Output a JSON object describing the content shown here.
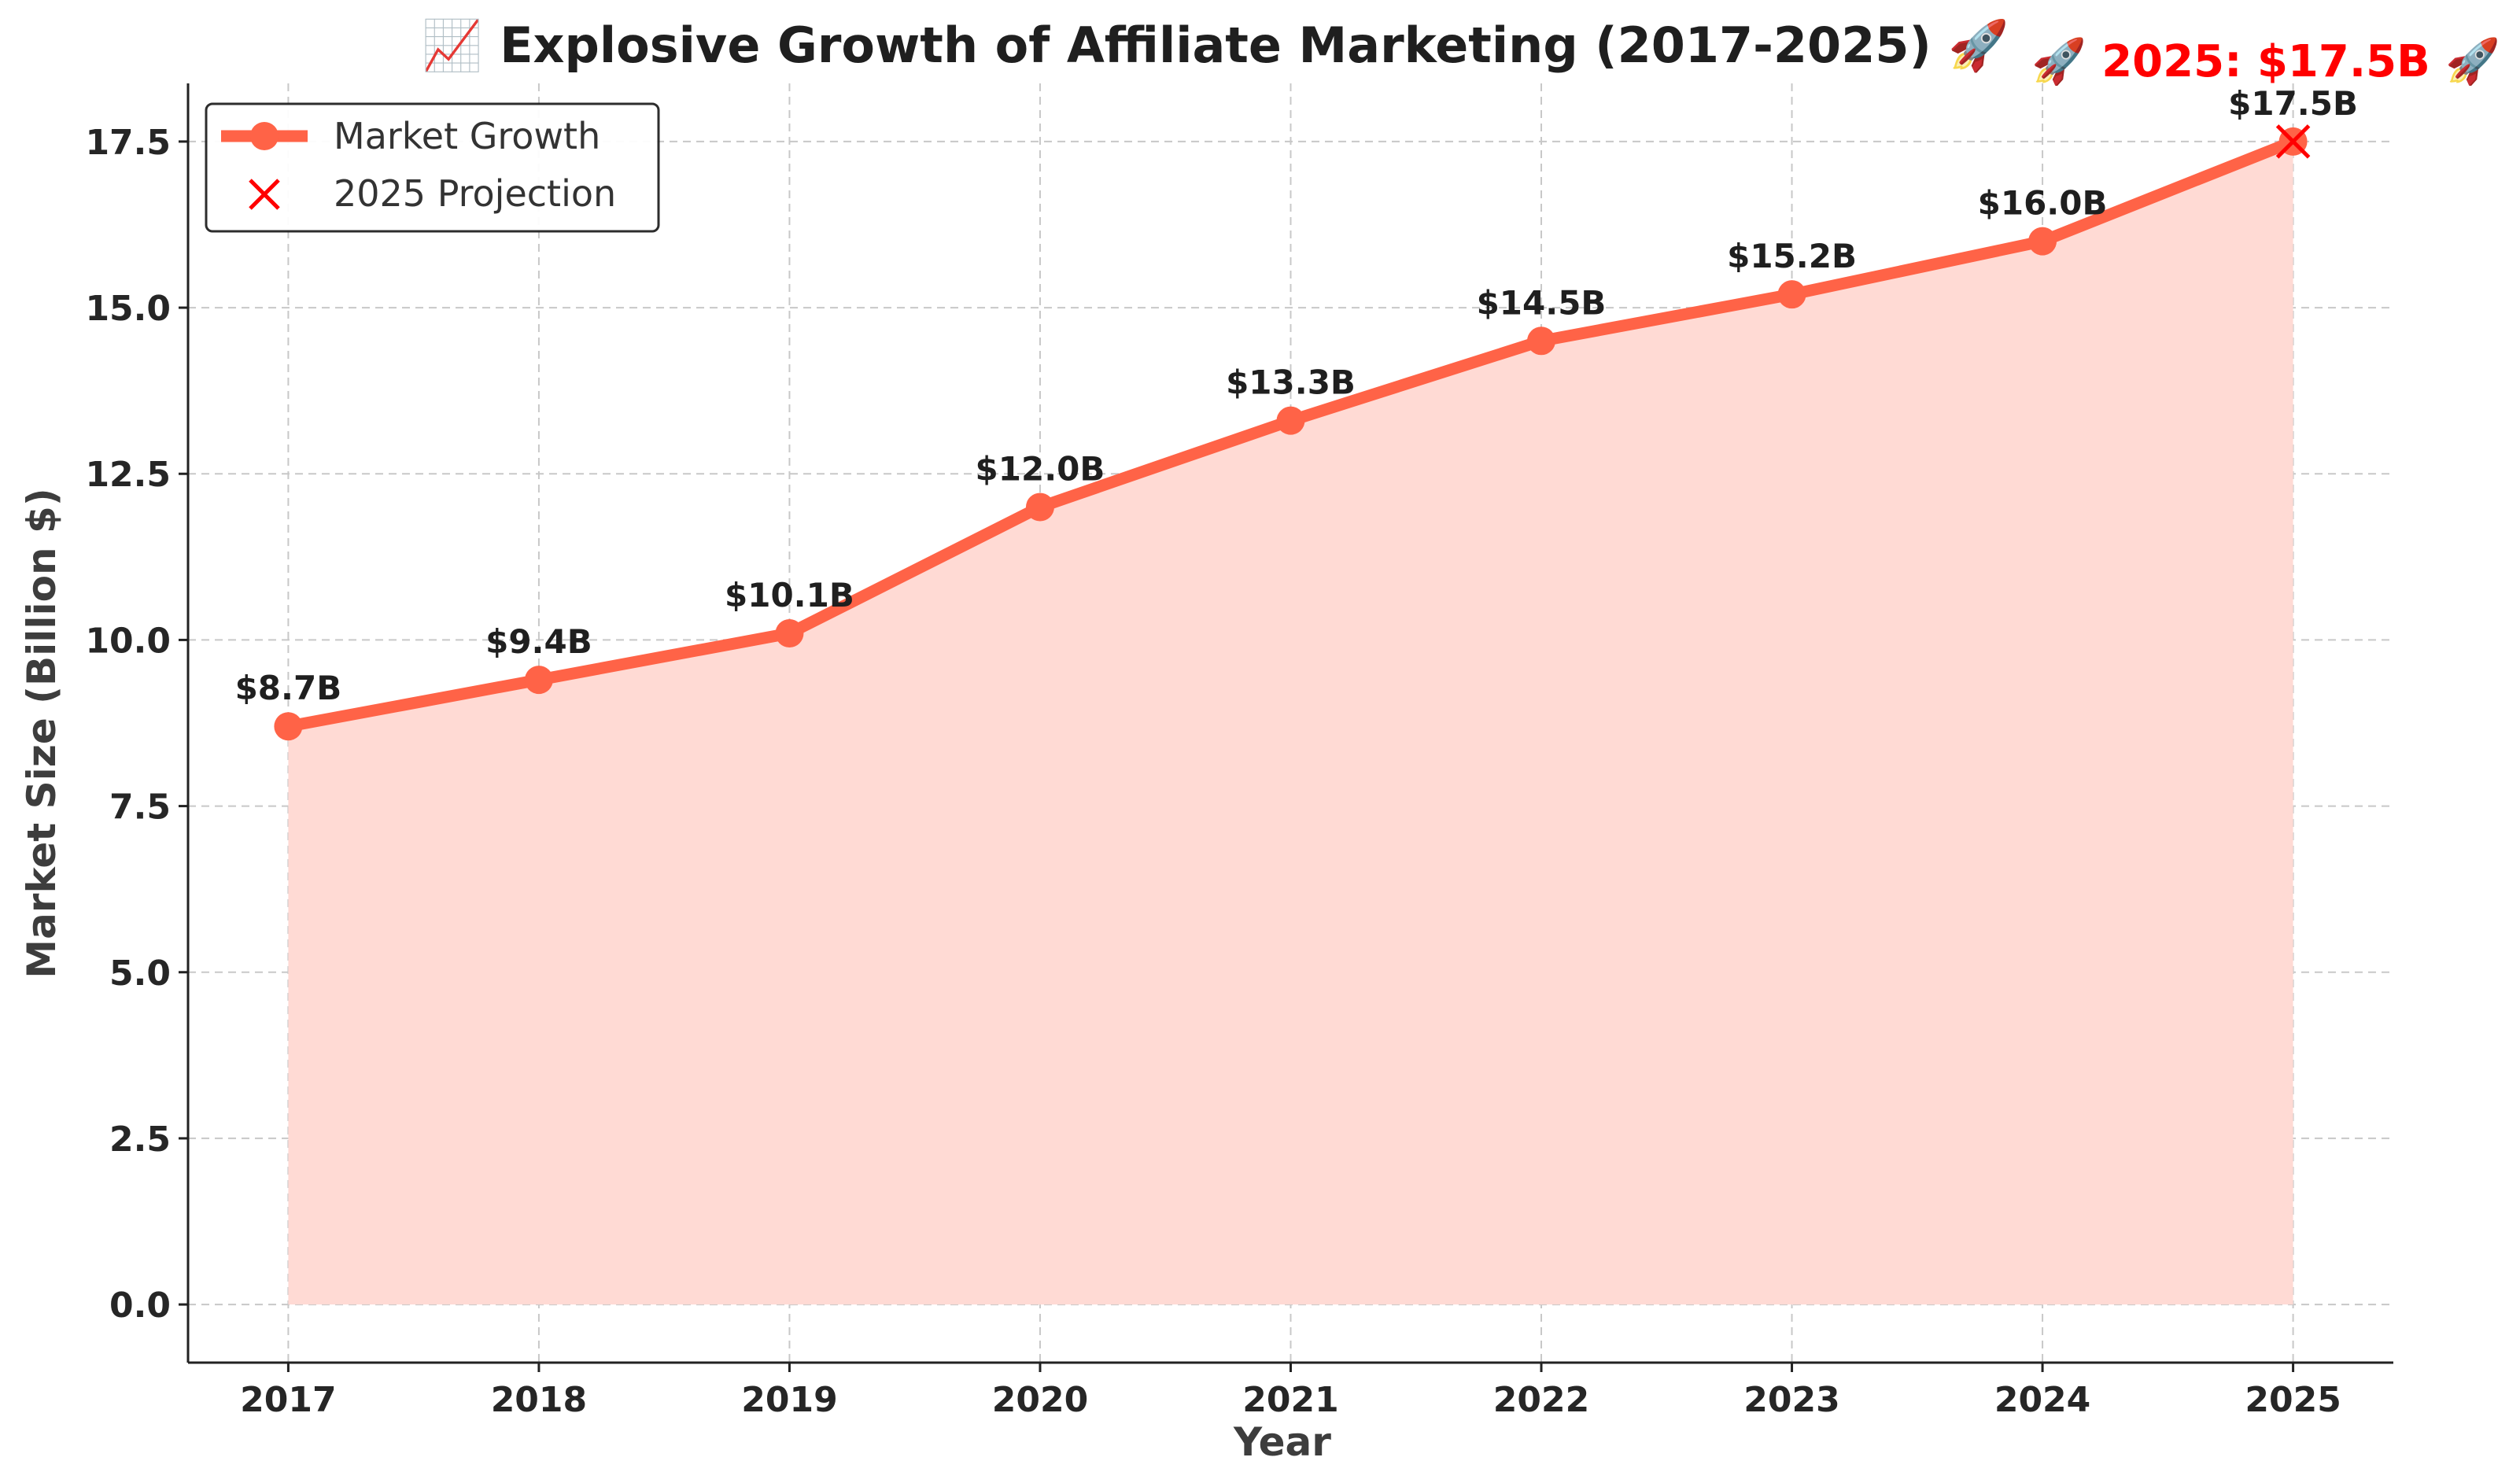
{
  "chart_data": {
    "type": "line",
    "title": "📈 Explosive Growth of Affiliate Marketing (2017-2025) 🚀",
    "xlabel": "Year",
    "ylabel": "Market Size (Billion $)",
    "categories": [
      "2017",
      "2018",
      "2019",
      "2020",
      "2021",
      "2022",
      "2023",
      "2024",
      "2025"
    ],
    "series": [
      {
        "name": "Market Growth",
        "values": [
          8.7,
          9.4,
          10.1,
          12.0,
          13.3,
          14.5,
          15.2,
          16.0,
          17.5
        ],
        "labels": [
          "$8.7B",
          "$9.4B",
          "$10.1B",
          "$12.0B",
          "$13.3B",
          "$14.5B",
          "$15.2B",
          "$16.0B",
          "$17.5B"
        ],
        "color": "#ff6347",
        "fill_color": "#ffdad4",
        "area_fill": true
      }
    ],
    "projection": {
      "name": "2025 Projection",
      "x": "2025",
      "y": 17.5,
      "marker": "x",
      "color": "#ff0000"
    },
    "annotation": {
      "text": "🚀 2025: $17.5B 🚀",
      "color": "#ff0000"
    },
    "yticks": [
      0.0,
      2.5,
      5.0,
      7.5,
      10.0,
      12.5,
      15.0,
      17.5
    ],
    "ytick_labels": [
      "0.0",
      "2.5",
      "5.0",
      "7.5",
      "10.0",
      "12.5",
      "15.0",
      "17.5"
    ],
    "ylim": [
      -0.875,
      18.375
    ],
    "xlim": [
      -0.4,
      8.4
    ],
    "grid": true,
    "legend": {
      "position": "top-left",
      "entries": [
        "Market Growth",
        "2025 Projection"
      ]
    }
  }
}
